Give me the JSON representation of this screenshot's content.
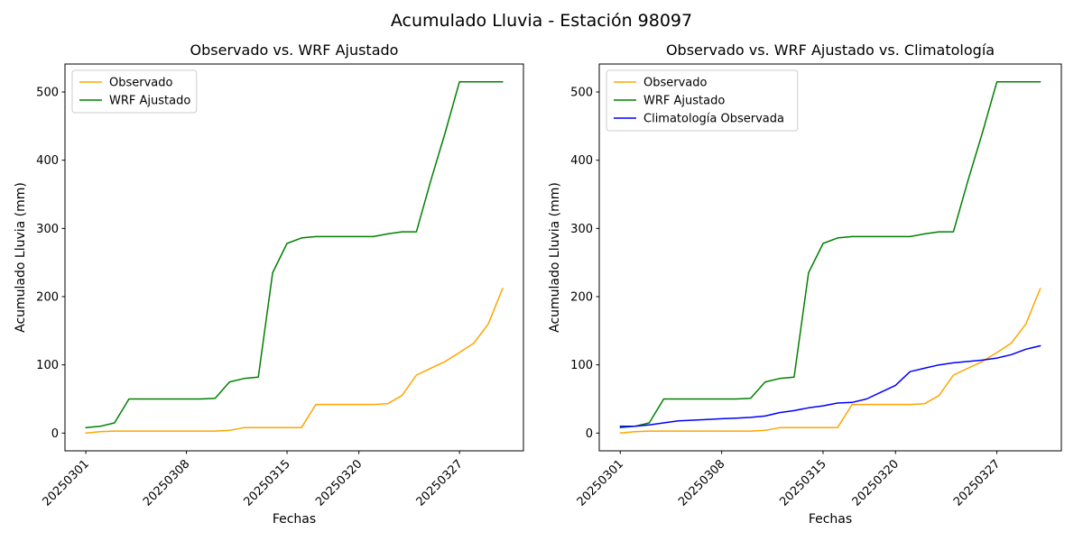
{
  "suptitle": "Acumulado Lluvia - Estación 98097",
  "colors": {
    "observado": "#ffa500",
    "wrf_ajustado": "#008000",
    "climatologia": "#0000ff"
  },
  "chart_data": [
    {
      "type": "line",
      "title": "Observado vs. WRF Ajustado",
      "xlabel": "Fechas",
      "ylabel": "Acumulado Lluvia (mm)",
      "grid": false,
      "legend_position": "upper left",
      "x": [
        "20250301",
        "20250302",
        "20250303",
        "20250304",
        "20250305",
        "20250306",
        "20250307",
        "20250308",
        "20250309",
        "20250310",
        "20250311",
        "20250312",
        "20250313",
        "20250314",
        "20250315",
        "20250316",
        "20250317",
        "20250318",
        "20250319",
        "20250320",
        "20250321",
        "20250322",
        "20250323",
        "20250324",
        "20250325",
        "20250326",
        "20250327",
        "20250328",
        "20250329",
        "20250330"
      ],
      "xtick_indices": [
        0,
        7,
        14,
        19,
        26
      ],
      "xtick_labels": [
        "20250301",
        "20250308",
        "20250315",
        "20250320",
        "20250327"
      ],
      "yticks": [
        0,
        100,
        200,
        300,
        400,
        500
      ],
      "ylim": [
        -26,
        541
      ],
      "xlim": [
        -1.45,
        30.45
      ],
      "series": [
        {
          "name": "Observado",
          "color": "#ffa500",
          "values": [
            0,
            2,
            3,
            3,
            3,
            3,
            3,
            3,
            3,
            3,
            4,
            8,
            8,
            8,
            8,
            8,
            42,
            42,
            42,
            42,
            42,
            43,
            55,
            85,
            95,
            105,
            118,
            132,
            160,
            212
          ]
        },
        {
          "name": "WRF Ajustado",
          "color": "#008000",
          "values": [
            8,
            10,
            15,
            50,
            50,
            50,
            50,
            50,
            50,
            51,
            75,
            80,
            82,
            235,
            278,
            286,
            288,
            288,
            288,
            288,
            288,
            292,
            295,
            295,
            370,
            440,
            515,
            515,
            515,
            515
          ]
        }
      ]
    },
    {
      "type": "line",
      "title": "Observado vs. WRF Ajustado vs. Climatología",
      "xlabel": "Fechas",
      "ylabel": "Acumulado Lluvia (mm)",
      "grid": false,
      "legend_position": "upper left",
      "x": [
        "20250301",
        "20250302",
        "20250303",
        "20250304",
        "20250305",
        "20250306",
        "20250307",
        "20250308",
        "20250309",
        "20250310",
        "20250311",
        "20250312",
        "20250313",
        "20250314",
        "20250315",
        "20250316",
        "20250317",
        "20250318",
        "20250319",
        "20250320",
        "20250321",
        "20250322",
        "20250323",
        "20250324",
        "20250325",
        "20250326",
        "20250327",
        "20250328",
        "20250329",
        "20250330"
      ],
      "xtick_indices": [
        0,
        7,
        14,
        19,
        26
      ],
      "xtick_labels": [
        "20250301",
        "20250308",
        "20250315",
        "20250320",
        "20250327"
      ],
      "yticks": [
        0,
        100,
        200,
        300,
        400,
        500
      ],
      "ylim": [
        -26,
        541
      ],
      "xlim": [
        -1.45,
        30.45
      ],
      "series": [
        {
          "name": "Observado",
          "color": "#ffa500",
          "values": [
            0,
            2,
            3,
            3,
            3,
            3,
            3,
            3,
            3,
            3,
            4,
            8,
            8,
            8,
            8,
            8,
            42,
            42,
            42,
            42,
            42,
            43,
            55,
            85,
            95,
            105,
            118,
            132,
            160,
            212
          ]
        },
        {
          "name": "WRF Ajustado",
          "color": "#008000",
          "values": [
            8,
            10,
            15,
            50,
            50,
            50,
            50,
            50,
            50,
            51,
            75,
            80,
            82,
            235,
            278,
            286,
            288,
            288,
            288,
            288,
            288,
            292,
            295,
            295,
            370,
            440,
            515,
            515,
            515,
            515
          ]
        },
        {
          "name": "Climatología Observada",
          "color": "#0000ff",
          "values": [
            10,
            10,
            12,
            15,
            18,
            19,
            20,
            21,
            22,
            23,
            25,
            30,
            33,
            37,
            40,
            44,
            45,
            50,
            60,
            70,
            90,
            95,
            100,
            103,
            105,
            107,
            110,
            115,
            123,
            128
          ]
        }
      ]
    }
  ]
}
